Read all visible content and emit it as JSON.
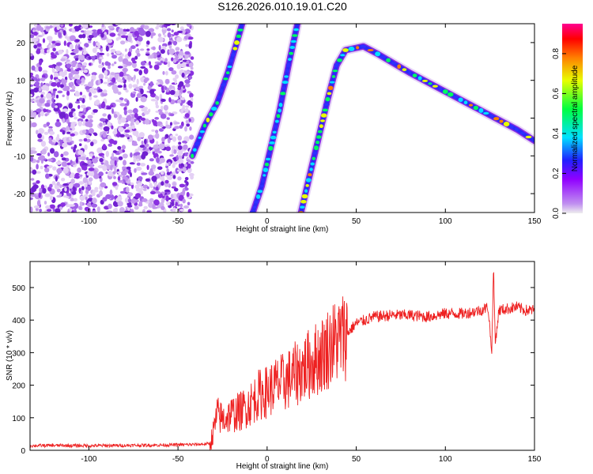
{
  "chart_data": [
    {
      "type": "heatmap",
      "title": "S126.2026.010.19.01.C20",
      "xlabel": "Height of straight line (km)",
      "ylabel": "Frequency (Hz)",
      "xlim": [
        -133,
        150
      ],
      "ylim": [
        -25,
        25
      ],
      "xticks": [
        -100,
        -50,
        0,
        50,
        100,
        150
      ],
      "yticks": [
        -20,
        -10,
        0,
        10,
        20
      ],
      "colorbar": {
        "label": "Normalized spectral amplitude",
        "range": [
          0.0,
          0.95
        ],
        "ticks": [
          0.0,
          0.2,
          0.4,
          0.6,
          0.8
        ],
        "colors": [
          "#cccccc",
          "#a020f0",
          "#3030ff",
          "#00ffff",
          "#00ff00",
          "#ffff00",
          "#ff8000",
          "#ff0000",
          "#ff00a0"
        ]
      },
      "noise_region": {
        "x_range": [
          -133,
          -42
        ],
        "amplitude": 0.15
      },
      "tracks": [
        {
          "name": "track-1",
          "points": [
            [
              -42,
              -10
            ],
            [
              -35,
              -2
            ],
            [
              -28,
              4
            ],
            [
              -22,
              12
            ],
            [
              -17,
              20
            ],
            [
              -14,
              25
            ]
          ],
          "amplitude": 0.35
        },
        {
          "name": "track-2",
          "points": [
            [
              -8,
              -25
            ],
            [
              -3,
              -18
            ],
            [
              2,
              -8
            ],
            [
              7,
              2
            ],
            [
              12,
              14
            ],
            [
              17,
              25
            ]
          ],
          "amplitude": 0.25
        },
        {
          "name": "track-3",
          "points": [
            [
              19,
              -25
            ],
            [
              24,
              -15
            ],
            [
              29,
              -5
            ],
            [
              34,
              5
            ],
            [
              39,
              14
            ],
            [
              44,
              18
            ],
            [
              54,
              19
            ],
            [
              62,
              17
            ],
            [
              80,
              12
            ],
            [
              100,
              7
            ],
            [
              120,
              2
            ],
            [
              140,
              -3
            ],
            [
              150,
              -6
            ]
          ],
          "amplitude": 0.5
        }
      ]
    },
    {
      "type": "line",
      "xlabel": "Height of straight line (km)",
      "ylabel": "SNR (10 * v/v)",
      "xlim": [
        -133,
        150
      ],
      "ylim": [
        0,
        580
      ],
      "xticks": [
        -100,
        -50,
        0,
        50,
        100,
        150
      ],
      "yticks": [
        0,
        100,
        200,
        300,
        400,
        500
      ],
      "color": "#ff2020",
      "series": [
        {
          "name": "SNR",
          "x": [
            -133,
            -120,
            -100,
            -80,
            -60,
            -40,
            -32,
            -30,
            -28,
            -25,
            -20,
            -15,
            -10,
            -5,
            0,
            5,
            10,
            15,
            20,
            25,
            30,
            35,
            40,
            45,
            50,
            55,
            60,
            70,
            80,
            90,
            100,
            110,
            115,
            120,
            124,
            126,
            127,
            128,
            130,
            135,
            140,
            145,
            150
          ],
          "y": [
            14,
            15,
            14,
            15,
            16,
            18,
            20,
            60,
            110,
            95,
            110,
            120,
            140,
            170,
            180,
            200,
            210,
            230,
            250,
            270,
            290,
            320,
            340,
            360,
            390,
            400,
            410,
            415,
            415,
            410,
            420,
            420,
            425,
            430,
            440,
            300,
            560,
            330,
            430,
            435,
            440,
            430,
            430
          ]
        }
      ]
    }
  ]
}
